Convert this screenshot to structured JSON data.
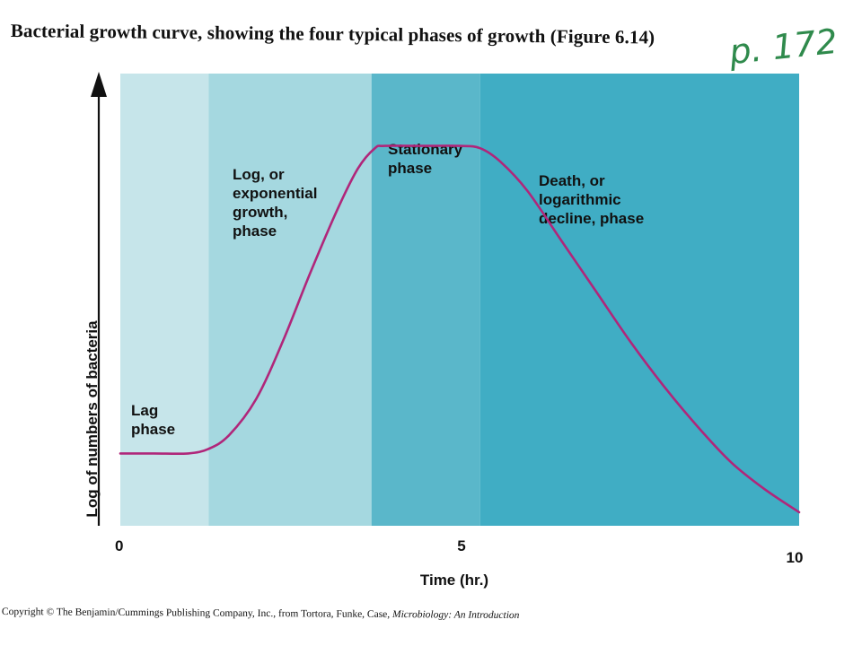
{
  "page": {
    "title": "Bacterial growth curve, showing the four typical phases of growth (Figure 6.14)",
    "annotation": "p. 172",
    "copyright_main": "Copyright © The Benjamin/Cummings Publishing Company, Inc., from Tortora, Funke, Case, ",
    "copyright_book": "Microbiology: An Introduction"
  },
  "chart_data": {
    "type": "line",
    "title": "Bacterial growth curve, showing the four typical phases of growth (Figure 6.14)",
    "xlabel": "Time (hr.)",
    "ylabel": "Log of numbers of bacteria",
    "xlim": [
      0,
      10
    ],
    "x_ticks": [
      0,
      5,
      10
    ],
    "x_tick_labels": [
      "0",
      "5",
      "10"
    ],
    "y_ticks": [],
    "grid": false,
    "legend": "none",
    "phases": [
      {
        "name": "lag",
        "label_lines": [
          "Lag",
          "phase"
        ],
        "x_start": 0,
        "x_end": 1.3,
        "color": "#c6e5ea"
      },
      {
        "name": "log",
        "label_lines": [
          "Log, or",
          "exponential",
          "growth,",
          "phase"
        ],
        "x_start": 1.3,
        "x_end": 3.7,
        "color": "#a5d8e0"
      },
      {
        "name": "stationary",
        "label_lines": [
          "Stationary",
          "phase"
        ],
        "x_start": 3.7,
        "x_end": 5.3,
        "color": "#5ab7ca"
      },
      {
        "name": "death",
        "label_lines": [
          "Death, or",
          "logarithmic",
          "decline, phase"
        ],
        "x_start": 5.3,
        "x_end": 10,
        "color": "#40adc4"
      }
    ],
    "series": [
      {
        "color": "#b0267a",
        "x": [
          0,
          0.5,
          1.0,
          1.3,
          1.6,
          2.0,
          2.4,
          2.8,
          3.2,
          3.5,
          3.75,
          3.9,
          4.5,
          5.0,
          5.3,
          5.6,
          6.0,
          6.5,
          7.0,
          7.5,
          8.0,
          8.5,
          9.0,
          9.5,
          10.0
        ],
        "y": [
          1.6,
          1.6,
          1.6,
          1.7,
          2.0,
          2.8,
          4.1,
          5.6,
          7.0,
          7.9,
          8.35,
          8.4,
          8.4,
          8.4,
          8.35,
          8.05,
          7.4,
          6.3,
          5.2,
          4.1,
          3.1,
          2.2,
          1.4,
          0.8,
          0.3
        ]
      }
    ],
    "ylim": [
      0,
      10
    ]
  }
}
